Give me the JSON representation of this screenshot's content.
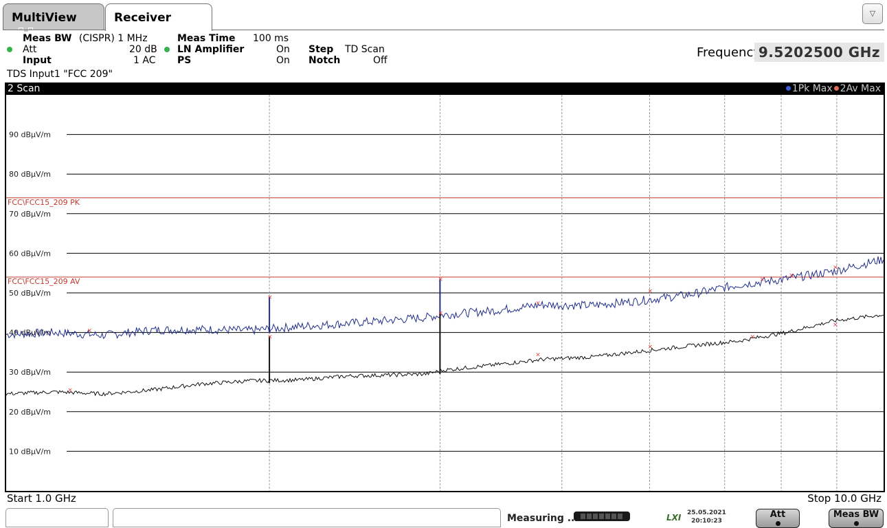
{
  "tabs": [
    {
      "label": "MultiView"
    },
    {
      "label": "Receiver"
    }
  ],
  "settings": {
    "meas_bw_label": "Meas BW",
    "meas_bw_value": "(CISPR) 1 MHz",
    "att_label": "Att",
    "att_value": "20 dB",
    "input_label": "Input",
    "input_value": "1 AC",
    "meas_time_label": "Meas Time",
    "meas_time_value": "100 ms",
    "ln_amp_label": "LN Amplifier",
    "ln_amp_value": "On",
    "ps_label": "PS",
    "ps_value": "On",
    "step_label": "Step",
    "step_value": "TD Scan",
    "notch_label": "Notch",
    "notch_value": "Off",
    "tds_line": "TDS Input1 \"FCC 209\""
  },
  "frequency": {
    "label": "Frequency",
    "value": "9.5202500 GHz"
  },
  "scan": {
    "title": "2 Scan",
    "legend_1": "1Pk Max",
    "legend_2": "2Av Max",
    "start": "Start 1.0 GHz",
    "stop": "Stop 10.0 GHz"
  },
  "status": {
    "measuring": "Measuring ...",
    "lxi": "LXI",
    "date": "25.05.2021",
    "time": "20:10:23",
    "att_btn": "Att",
    "meas_bw_btn": "Meas BW"
  },
  "chart_data": {
    "type": "line",
    "x_unit": "GHz",
    "xlim": [
      1.0,
      10.0
    ],
    "ylim": [
      0,
      100
    ],
    "y_unit": "dBµV/m",
    "y_ticks": [
      10,
      20,
      30,
      40,
      50,
      60,
      70,
      80,
      90
    ],
    "y_tick_labels": [
      "10 dBµV/m",
      "20 dBµV/m",
      "30 dBµV/m",
      "40 dBµV/m",
      "50 dBµV/m",
      "60 dBµV/m",
      "70 dBµV/m",
      "80 dBµV/m",
      "90 dBµV/m"
    ],
    "vertical_grid_x": [
      3.7,
      5.45,
      6.7,
      7.6,
      8.37,
      8.95,
      9.52
    ],
    "limit_lines": [
      {
        "name": "FCC\\FCC15_209 PK",
        "value": 74,
        "color": "#c0392b"
      },
      {
        "name": "FCC\\FCC15_209 AV",
        "value": 54,
        "color": "#c0392b"
      }
    ],
    "series": [
      {
        "name": "1Pk Max",
        "color": "#1f2d8a",
        "x": [
          1.0,
          1.5,
          2.0,
          2.5,
          3.0,
          3.5,
          4.0,
          4.5,
          5.0,
          5.3,
          5.5,
          6.0,
          6.5,
          7.0,
          7.5,
          8.0,
          8.5,
          9.0,
          9.5,
          10.0
        ],
        "values": [
          39.5,
          40.0,
          39.3,
          40.6,
          40.8,
          40.5,
          41.5,
          42.3,
          43.2,
          43.8,
          44.5,
          45.5,
          47.0,
          46.8,
          48.0,
          49.5,
          52.0,
          53.5,
          55.5,
          58.5
        ]
      },
      {
        "name": "2Av Max",
        "color": "#111111",
        "x": [
          1.0,
          1.5,
          2.0,
          2.5,
          3.0,
          3.5,
          4.0,
          4.5,
          5.0,
          5.3,
          5.5,
          6.0,
          6.5,
          7.0,
          7.5,
          8.0,
          8.5,
          9.0,
          9.5,
          10.0
        ],
        "values": [
          24.5,
          25.0,
          24.5,
          25.5,
          27.0,
          27.8,
          28.0,
          29.0,
          29.3,
          29.5,
          30.5,
          31.8,
          33.2,
          33.8,
          35.2,
          36.6,
          37.8,
          40.0,
          43.0,
          44.5
        ]
      }
    ],
    "spikes": [
      {
        "series": "1Pk Max",
        "x": 3.7,
        "values": [
          40.0,
          49.0
        ]
      },
      {
        "series": "1Pk Max",
        "x": 5.45,
        "values": [
          43.8,
          53.5
        ]
      },
      {
        "series": "2Av Max",
        "x": 3.7,
        "values": [
          27.2,
          39.0
        ]
      },
      {
        "series": "2Av Max",
        "x": 5.45,
        "values": [
          29.5,
          45.0
        ]
      }
    ],
    "peak_markers_pk": [
      {
        "x": 1.85,
        "y": 40.5
      },
      {
        "x": 3.7,
        "y": 49.0
      },
      {
        "x": 5.45,
        "y": 53.5
      },
      {
        "x": 6.45,
        "y": 47.5
      },
      {
        "x": 7.6,
        "y": 50.5
      },
      {
        "x": 8.75,
        "y": 53.5
      },
      {
        "x": 9.05,
        "y": 54.5
      },
      {
        "x": 9.5,
        "y": 56.5
      }
    ],
    "peak_markers_av": [
      {
        "x": 1.65,
        "y": 25.5
      },
      {
        "x": 3.7,
        "y": 39.0
      },
      {
        "x": 5.45,
        "y": 45.0
      },
      {
        "x": 6.45,
        "y": 34.5
      },
      {
        "x": 7.6,
        "y": 36.5
      },
      {
        "x": 8.65,
        "y": 39.0
      },
      {
        "x": 9.5,
        "y": 42.0
      }
    ]
  }
}
